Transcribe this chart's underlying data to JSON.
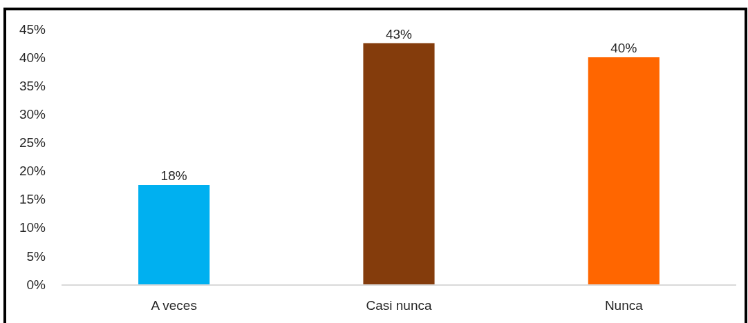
{
  "chart_data": {
    "type": "bar",
    "categories": [
      "A veces",
      "Casi nunca",
      "Nunca"
    ],
    "values": [
      17.5,
      42.5,
      40
    ],
    "colors": [
      "#00b0f0",
      "#843c0c",
      "#ff6600"
    ],
    "value_labels": [
      "18%",
      "43%",
      "40%"
    ],
    "ylim": [
      0,
      45
    ],
    "yticks": [
      {
        "value": 0,
        "label": "0%"
      },
      {
        "value": 5,
        "label": "5%"
      },
      {
        "value": 10,
        "label": "10%"
      },
      {
        "value": 15,
        "label": "15%"
      },
      {
        "value": 20,
        "label": "20%"
      },
      {
        "value": 25,
        "label": "25%"
      },
      {
        "value": 30,
        "label": "30%"
      },
      {
        "value": 35,
        "label": "35%"
      },
      {
        "value": 40,
        "label": "40%"
      },
      {
        "value": 45,
        "label": "45%"
      }
    ],
    "grid": false
  }
}
